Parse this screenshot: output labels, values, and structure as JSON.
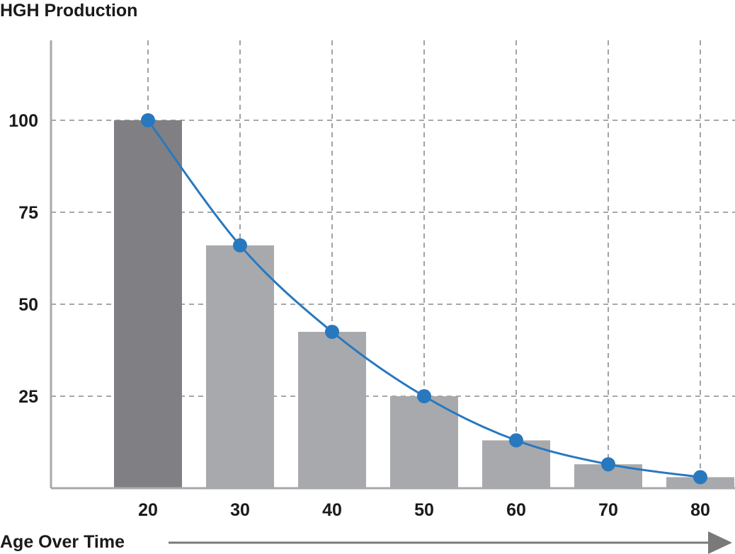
{
  "chart_data": {
    "type": "bar",
    "title": "HGH Production",
    "xlabel": "Age Over Time",
    "ylabel": "",
    "categories": [
      20,
      30,
      40,
      50,
      60,
      70,
      80
    ],
    "values": [
      100,
      66,
      42.5,
      25,
      13,
      6.5,
      3
    ],
    "line_values": [
      100,
      66,
      42.5,
      25,
      13,
      6.5,
      3
    ],
    "ylim": [
      0,
      125
    ],
    "yticks": [
      25,
      50,
      75,
      100
    ],
    "grid": true,
    "colors": {
      "highlight_bar": "#808084",
      "bar": "#a8a9ad",
      "line": "#2878be",
      "grid": "#8a8a8a",
      "axis": "#a8a9ad",
      "arrow": "#7a7a7a"
    }
  }
}
